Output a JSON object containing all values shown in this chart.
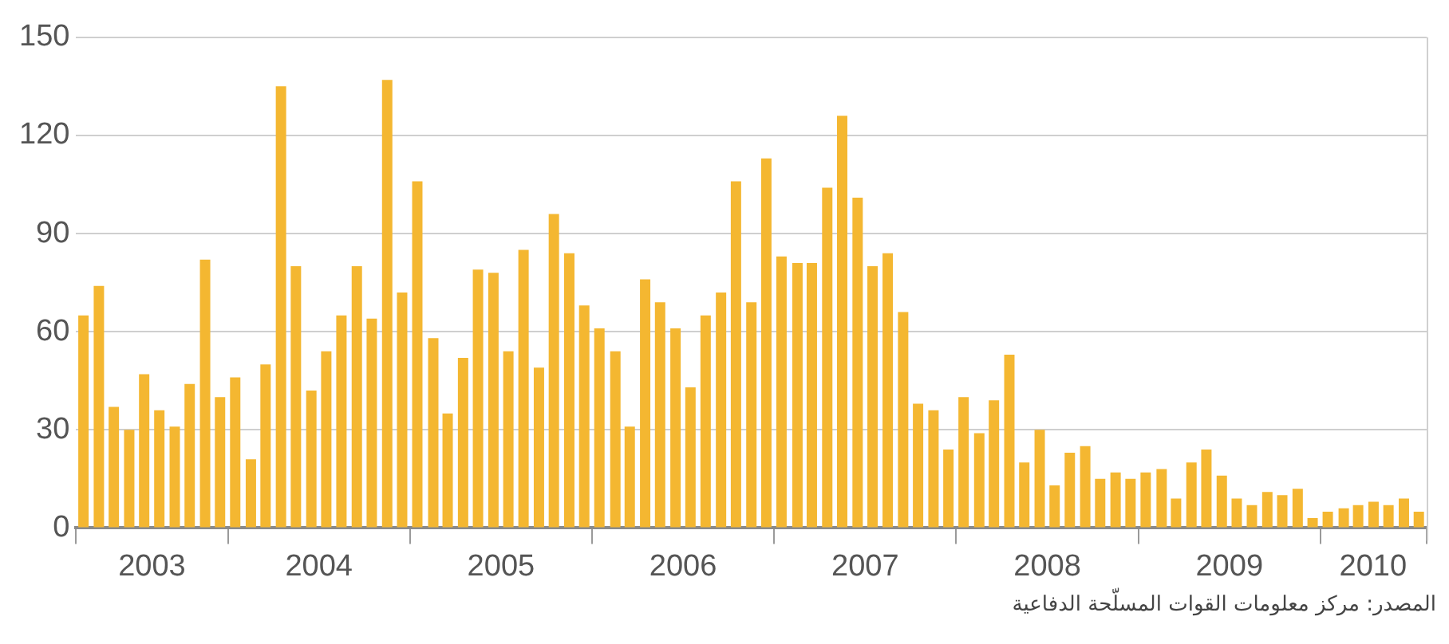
{
  "chart_data": {
    "type": "bar",
    "x": [
      "2003-03-16",
      "2003-04-16",
      "2003-05-16",
      "2003-06-16",
      "2003-07-16",
      "2003-08-16",
      "2003-09-16",
      "2003-10-16",
      "2003-11-16",
      "2003-12-16",
      "2004-01-16",
      "2004-02-16",
      "2004-03-16",
      "2004-04-16",
      "2004-05-16",
      "2004-06-16",
      "2004-07-16",
      "2004-08-16",
      "2004-09-16",
      "2004-10-16",
      "2004-11-16",
      "2004-12-16",
      "2005-01-16",
      "2005-02-16",
      "2005-03-16",
      "2005-04-16",
      "2005-05-16",
      "2005-06-16",
      "2005-07-16",
      "2005-08-16",
      "2005-09-16",
      "2005-10-16",
      "2005-11-16",
      "2005-12-16",
      "2006-01-16",
      "2006-02-16",
      "2006-03-16",
      "2006-04-16",
      "2006-05-16",
      "2006-06-16",
      "2006-07-16",
      "2006-08-16",
      "2006-09-16",
      "2006-10-16",
      "2006-11-16",
      "2006-12-16",
      "2007-01-16",
      "2007-02-16",
      "2007-03-16",
      "2007-04-16",
      "2007-05-16",
      "2007-06-16",
      "2007-07-16",
      "2007-08-16",
      "2007-09-16",
      "2007-10-16",
      "2007-11-16",
      "2007-12-16",
      "2008-01-16",
      "2008-02-16",
      "2008-03-16",
      "2008-04-16",
      "2008-05-16",
      "2008-06-16",
      "2008-07-16",
      "2008-08-16",
      "2008-09-16",
      "2008-10-16",
      "2008-11-16",
      "2008-12-16",
      "2009-01-16",
      "2009-02-16",
      "2009-03-16",
      "2009-04-16",
      "2009-05-16",
      "2009-06-16",
      "2009-07-16",
      "2009-08-16",
      "2009-09-16",
      "2009-10-16",
      "2009-11-16",
      "2009-12-16",
      "2010-01-16",
      "2010-02-16",
      "2010-03-16",
      "2010-04-16",
      "2010-05-16",
      "2010-06-16",
      "2010-07-16"
    ],
    "values": [
      65,
      74,
      37,
      30,
      47,
      36,
      31,
      44,
      82,
      40,
      46,
      21,
      50,
      135,
      80,
      42,
      54,
      65,
      80,
      64,
      137,
      72,
      106,
      58,
      35,
      52,
      79,
      78,
      54,
      85,
      49,
      96,
      84,
      68,
      61,
      54,
      31,
      76,
      69,
      61,
      43,
      65,
      72,
      106,
      69,
      113,
      83,
      81,
      81,
      104,
      126,
      101,
      80,
      84,
      66,
      38,
      36,
      24,
      40,
      29,
      39,
      53,
      20,
      30,
      13,
      23,
      25,
      15,
      17,
      15,
      17,
      18,
      9,
      20,
      24,
      16,
      9,
      7,
      11,
      10,
      12,
      3,
      5,
      6,
      7,
      8,
      7,
      9,
      5
    ],
    "color": "#f4b731",
    "xlim": [
      "2003-03-01",
      "2010-08-01"
    ],
    "xticks": [
      {
        "value": "2003-03-01",
        "label": null
      },
      {
        "value": "2003-08-01",
        "label": "2003"
      },
      {
        "value": "2004-01-01",
        "label": null
      },
      {
        "value": "2004-07-01",
        "label": "2004"
      },
      {
        "value": "2005-01-01",
        "label": null
      },
      {
        "value": "2005-07-01",
        "label": "2005"
      },
      {
        "value": "2006-01-01",
        "label": null
      },
      {
        "value": "2006-07-01",
        "label": "2006"
      },
      {
        "value": "2007-01-01",
        "label": null
      },
      {
        "value": "2007-07-01",
        "label": "2007"
      },
      {
        "value": "2008-01-01",
        "label": null
      },
      {
        "value": "2008-07-01",
        "label": "2008"
      },
      {
        "value": "2009-01-01",
        "label": null
      },
      {
        "value": "2009-07-01",
        "label": "2009"
      },
      {
        "value": "2010-01-01",
        "label": null
      },
      {
        "value": "2010-04-15",
        "label": "2010"
      },
      {
        "value": "2010-08-01",
        "label": null
      }
    ],
    "ylim": [
      0,
      150
    ],
    "yticks": [
      0,
      30,
      60,
      90,
      120,
      150
    ],
    "grid": "y",
    "annotations": [
      "المصدر: مركز معلومات القوات المسلّحة الدفاعية"
    ]
  }
}
